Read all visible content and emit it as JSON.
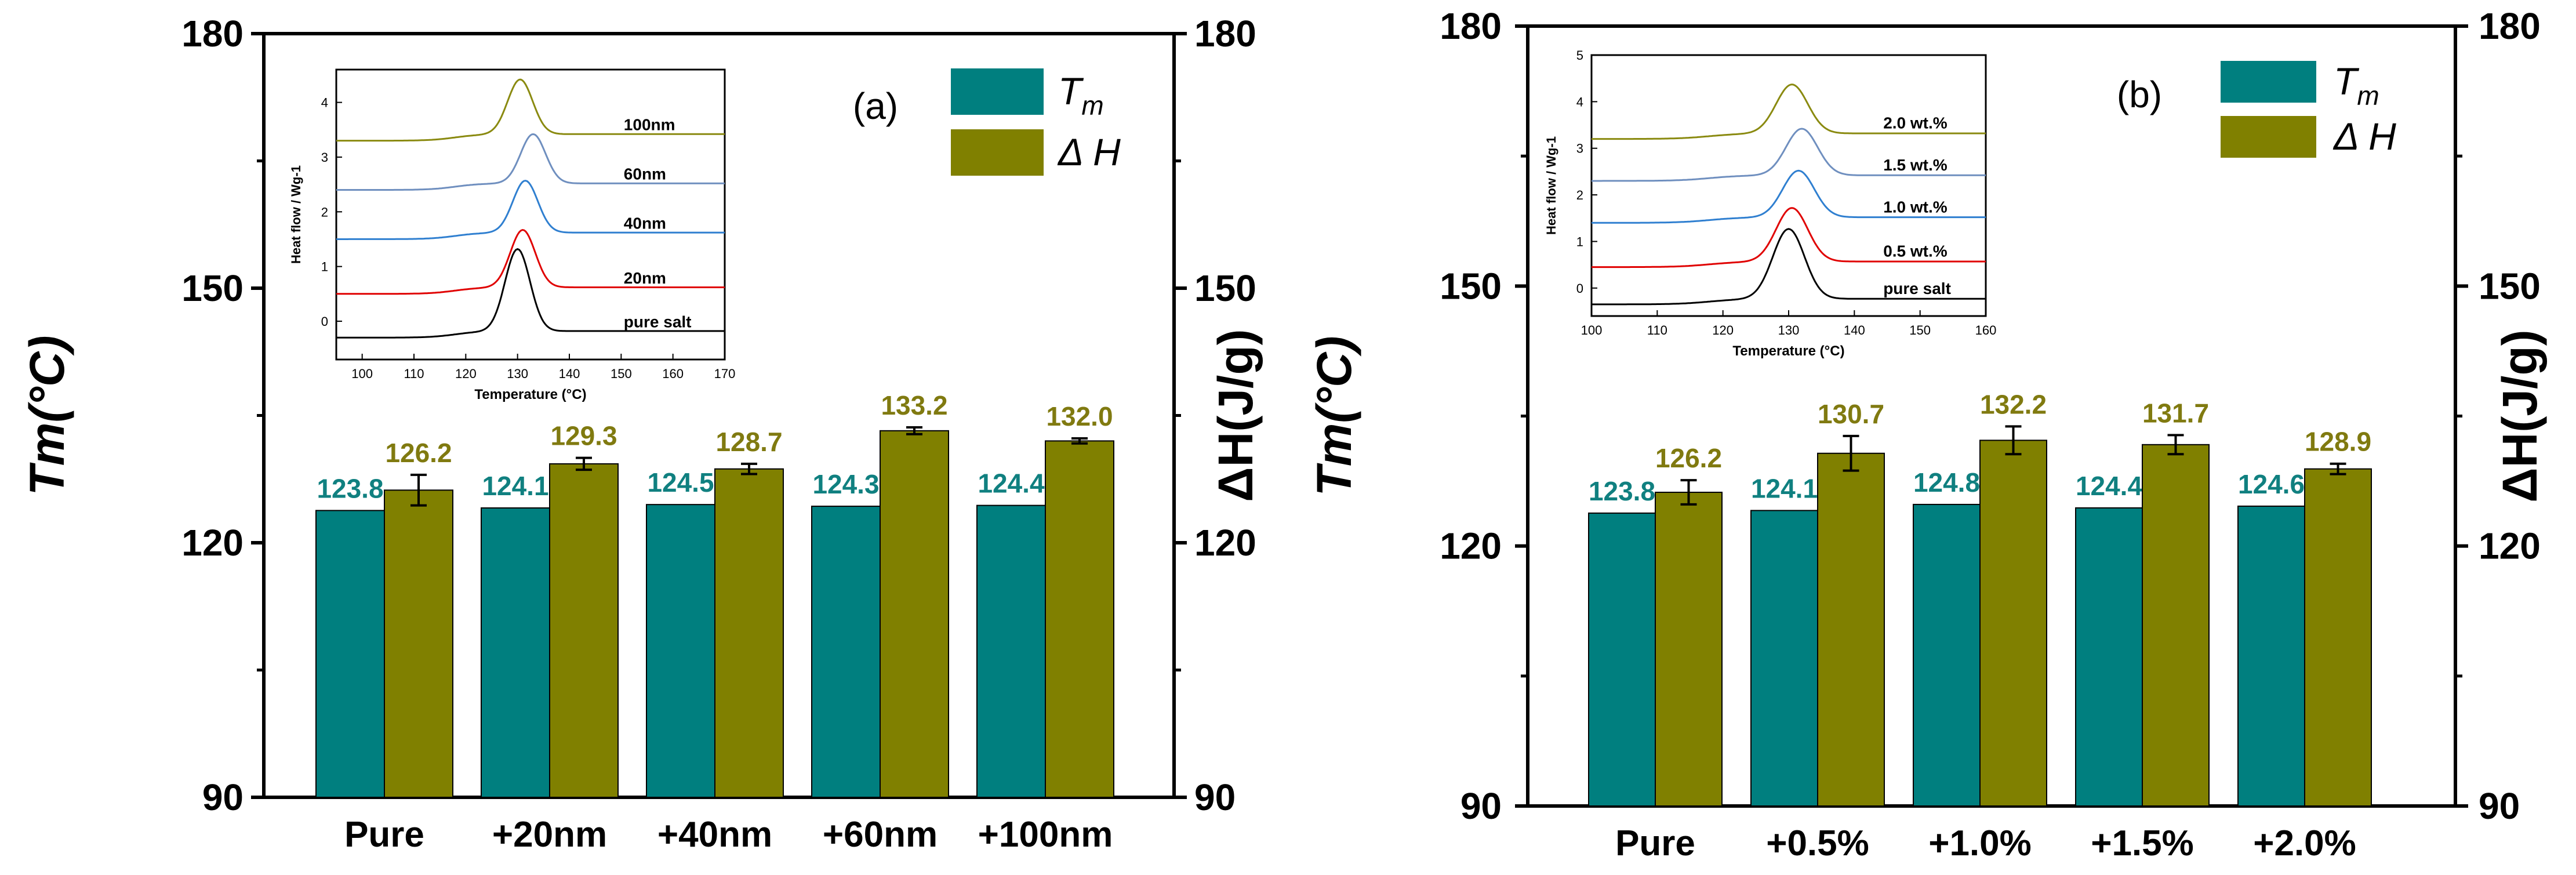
{
  "chart_data": [
    {
      "panel": "(a)",
      "type": "bar",
      "categories": [
        "Pure",
        "+20nm",
        "+40nm",
        "+60nm",
        "+100nm"
      ],
      "series": [
        {
          "name": "Tm",
          "color": "#007f7f",
          "label_color": "#108080",
          "values": [
            123.8,
            124.1,
            124.5,
            124.3,
            124.4
          ],
          "labels": [
            "123.8",
            "124.1",
            "124.5",
            "124.3",
            "124.4"
          ]
        },
        {
          "name": "ΔH",
          "color": "#808000",
          "label_color": "#807a10",
          "values": [
            126.2,
            129.3,
            128.7,
            133.2,
            132.0
          ],
          "labels": [
            "126.2",
            "129.3",
            "128.7",
            "133.2",
            "132.0"
          ],
          "errors": [
            1.8,
            0.7,
            0.6,
            0.4,
            0.3
          ]
        }
      ],
      "ylim": [
        90,
        180
      ],
      "yticks": [
        "90",
        "120",
        "150",
        "180"
      ],
      "ylabel_left": "Tm(°C)",
      "ylabel_right": "ΔH(J/g)",
      "legend": {
        "tm": "T",
        "tm_sub": "m",
        "dh": "Δ H"
      },
      "inset": {
        "type": "line",
        "xlabel": "Temperature (°C)",
        "ylabel": "Heat flow / Wg-1",
        "xlim": [
          95,
          170
        ],
        "xticks": [
          "100",
          "110",
          "120",
          "130",
          "140",
          "150",
          "160",
          "170"
        ],
        "ylim": [
          -0.7,
          4.6
        ],
        "yticks": [
          "0",
          "1",
          "2",
          "3",
          "4"
        ],
        "curves": [
          {
            "name": "pure salt",
            "baseline": -0.3,
            "peak_temp": 130,
            "peak_height": 1.5,
            "color": "#000000"
          },
          {
            "name": "20nm",
            "baseline": 0.5,
            "peak_temp": 131,
            "peak_height": 1.05,
            "color": "#e00000"
          },
          {
            "name": "40nm",
            "baseline": 1.5,
            "peak_temp": 131.5,
            "peak_height": 0.95,
            "color": "#2f7fd0"
          },
          {
            "name": "60nm",
            "baseline": 2.4,
            "peak_temp": 133,
            "peak_height": 0.9,
            "color": "#6f8fbf"
          },
          {
            "name": "100nm",
            "baseline": 3.3,
            "peak_temp": 130.5,
            "peak_height": 1.0,
            "color": "#8a8a10"
          }
        ]
      }
    },
    {
      "panel": "(b)",
      "type": "bar",
      "categories": [
        "Pure",
        "+0.5%",
        "+1.0%",
        "+1.5%",
        "+2.0%"
      ],
      "series": [
        {
          "name": "Tm",
          "color": "#007f7f",
          "label_color": "#108080",
          "values": [
            123.8,
            124.1,
            124.8,
            124.4,
            124.6
          ],
          "labels": [
            "123.8",
            "124.1",
            "124.8",
            "124.4",
            "124.6"
          ]
        },
        {
          "name": "ΔH",
          "color": "#808000",
          "label_color": "#807a10",
          "values": [
            126.2,
            130.7,
            132.2,
            131.7,
            128.9
          ],
          "labels": [
            "126.2",
            "130.7",
            "132.2",
            "131.7",
            "128.9"
          ],
          "errors": [
            1.4,
            2.0,
            1.6,
            1.1,
            0.6
          ]
        }
      ],
      "ylim": [
        90,
        180
      ],
      "yticks": [
        "90",
        "120",
        "150",
        "180"
      ],
      "ylabel_left": "Tm(°C)",
      "ylabel_right": "ΔH(J/g)",
      "legend": {
        "tm": "T",
        "tm_sub": "m",
        "dh": "Δ H"
      },
      "inset": {
        "type": "line",
        "xlabel": "Temperature (°C)",
        "ylabel": "Heat flow / Wg-1",
        "xlim": [
          100,
          160
        ],
        "xticks": [
          "100",
          "110",
          "120",
          "130",
          "140",
          "150",
          "160"
        ],
        "ylim": [
          -0.6,
          5
        ],
        "yticks": [
          "0",
          "1",
          "2",
          "3",
          "4",
          "5"
        ],
        "curves": [
          {
            "name": "pure salt",
            "baseline": -0.35,
            "peak_temp": 130,
            "peak_height": 1.5,
            "color": "#000000"
          },
          {
            "name": "0.5 wt.%",
            "baseline": 0.45,
            "peak_temp": 130.5,
            "peak_height": 1.15,
            "color": "#e00000"
          },
          {
            "name": "1.0 wt.%",
            "baseline": 1.4,
            "peak_temp": 131.5,
            "peak_height": 1.0,
            "color": "#2f7fd0"
          },
          {
            "name": "1.5 wt.%",
            "baseline": 2.3,
            "peak_temp": 132,
            "peak_height": 1.0,
            "color": "#6f8fbf"
          },
          {
            "name": "2.0 wt.%",
            "baseline": 3.2,
            "peak_temp": 130.5,
            "peak_height": 1.05,
            "color": "#8a8a10"
          }
        ]
      }
    }
  ]
}
